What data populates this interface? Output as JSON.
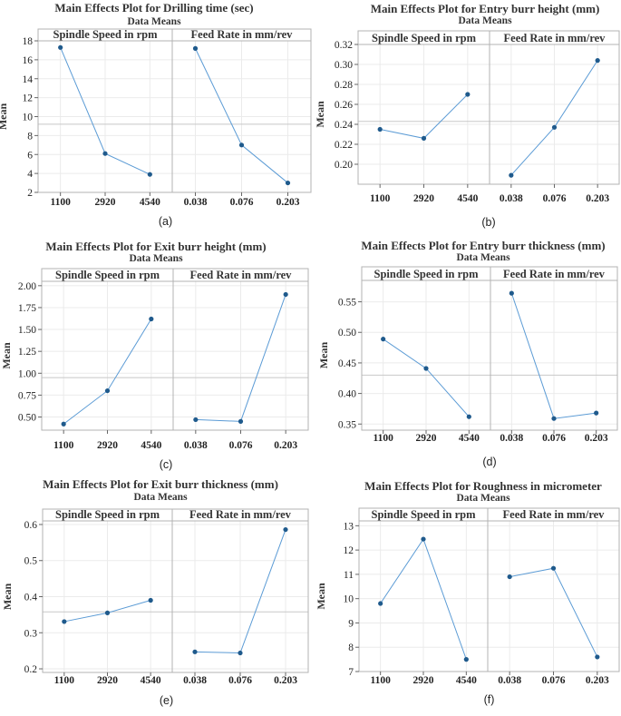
{
  "chart_data": [
    {
      "type": "line",
      "title": "Main Effects Plot for Drilling time (sec)",
      "subtitle": "Data Means",
      "ylabel": "Mean",
      "ylim": [
        2,
        18
      ],
      "yticks": [
        "2",
        "4",
        "6",
        "8",
        "10",
        "12",
        "14",
        "16",
        "18"
      ],
      "mean_line": 9.2,
      "caption": "(a)",
      "panels": [
        {
          "label": "Spindle Speed in rpm",
          "categories": [
            "1100",
            "2920",
            "4540"
          ],
          "values": [
            17.3,
            6.1,
            3.9
          ]
        },
        {
          "label": "Feed Rate in mm/rev",
          "categories": [
            "0.038",
            "0.076",
            "0.203"
          ],
          "values": [
            17.2,
            7.0,
            3.0
          ]
        }
      ]
    },
    {
      "type": "line",
      "title": "Main Effects Plot for Entry burr height (mm)",
      "subtitle": "Data Means",
      "ylabel": "Mean",
      "ylim": [
        0.18,
        0.32
      ],
      "yticks": [
        "0.20",
        "0.22",
        "0.24",
        "0.26",
        "0.28",
        "0.30",
        "0.32"
      ],
      "mean_line": 0.243,
      "caption": "(b)",
      "panels": [
        {
          "label": "Spindle Speed in rpm",
          "categories": [
            "1100",
            "2920",
            "4540"
          ],
          "values": [
            0.235,
            0.226,
            0.27
          ]
        },
        {
          "label": "Feed Rate in mm/rev",
          "categories": [
            "0.038",
            "0.076",
            "0.203"
          ],
          "values": [
            0.189,
            0.237,
            0.304
          ]
        }
      ]
    },
    {
      "type": "line",
      "title": "Main Effects Plot for Exit burr height (mm)",
      "subtitle": "Data Means",
      "ylabel": "Mean",
      "ylim": [
        0.35,
        2.05
      ],
      "yticks": [
        "0.50",
        "0.75",
        "1.00",
        "1.25",
        "1.50",
        "1.75",
        "2.00"
      ],
      "mean_line": 0.95,
      "caption": "(c)",
      "panels": [
        {
          "label": "Spindle Speed in rpm",
          "categories": [
            "1100",
            "2920",
            "4540"
          ],
          "values": [
            0.42,
            0.8,
            1.62
          ]
        },
        {
          "label": "Feed Rate in mm/rev",
          "categories": [
            "0.038",
            "0.076",
            "0.203"
          ],
          "values": [
            0.47,
            0.45,
            1.9
          ]
        }
      ]
    },
    {
      "type": "line",
      "title": "Main Effects Plot for Entry burr thickness (mm)",
      "subtitle": "Data Means",
      "ylabel": "Mean",
      "ylim": [
        0.34,
        0.585
      ],
      "yticks": [
        "0.35",
        "0.40",
        "0.45",
        "0.50",
        "0.55"
      ],
      "mean_line": 0.43,
      "caption": "(d)",
      "panels": [
        {
          "label": "Spindle Speed in rpm",
          "categories": [
            "1100",
            "2920",
            "4540"
          ],
          "values": [
            0.489,
            0.441,
            0.362
          ]
        },
        {
          "label": "Feed Rate in mm/rev",
          "categories": [
            "0.038",
            "0.076",
            "0.203"
          ],
          "values": [
            0.564,
            0.359,
            0.368
          ]
        }
      ]
    },
    {
      "type": "line",
      "title": "Main Effects Plot for Exit burr thickness (mm)",
      "subtitle": "Data Means",
      "ylabel": "Mean",
      "ylim": [
        0.19,
        0.61
      ],
      "yticks": [
        "0.2",
        "0.3",
        "0.4",
        "0.5",
        "0.6"
      ],
      "mean_line": 0.358,
      "caption": "(e)",
      "panels": [
        {
          "label": "Spindle Speed in rpm",
          "categories": [
            "1100",
            "2920",
            "4540"
          ],
          "values": [
            0.331,
            0.355,
            0.39
          ]
        },
        {
          "label": "Feed Rate in mm/rev",
          "categories": [
            "0.038",
            "0.076",
            "0.203"
          ],
          "values": [
            0.247,
            0.244,
            0.586
          ]
        }
      ]
    },
    {
      "type": "line",
      "title": "Main Effects Plot for Roughness in micrometer",
      "subtitle": "Data Means",
      "ylabel": "Mean",
      "ylim": [
        7,
        13.2
      ],
      "yticks": [
        "7",
        "8",
        "9",
        "10",
        "11",
        "12",
        "13"
      ],
      "mean_line": null,
      "caption": "(f)",
      "panels": [
        {
          "label": "Spindle Speed in rpm",
          "categories": [
            "1100",
            "2920",
            "4540"
          ],
          "values": [
            9.8,
            12.45,
            7.5
          ]
        },
        {
          "label": "Feed Rate in mm/rev",
          "categories": [
            "0.038",
            "0.076",
            "0.203"
          ],
          "values": [
            10.9,
            11.25,
            7.6
          ]
        }
      ]
    }
  ],
  "colors": {
    "series": "#5b9bd5",
    "marker": "#1f5a8c",
    "grid": "#ebebeb",
    "frame": "#b3b3b3",
    "mean": "#c8c8c8"
  }
}
